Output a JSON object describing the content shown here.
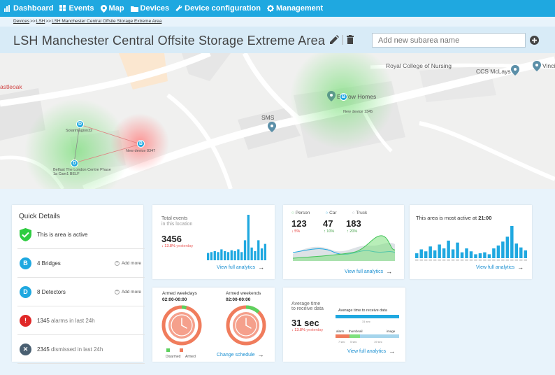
{
  "nav": {
    "items": [
      {
        "label": "Dashboard",
        "icon": "bar-chart-icon"
      },
      {
        "label": "Events",
        "icon": "grid-icon"
      },
      {
        "label": "Map",
        "icon": "map-pin-icon"
      },
      {
        "label": "Devices",
        "icon": "folder-icon"
      },
      {
        "label": "Device configuration",
        "icon": "wrench-icon"
      },
      {
        "label": "Management",
        "icon": "gear-icon"
      }
    ]
  },
  "breadcrumb": {
    "first": "Devices",
    "sep1": ">>",
    "second": "LSH",
    "sep2": ">>",
    "current": "LSH Manchester Central Offsite Storage Extreme Area"
  },
  "header": {
    "title": "LSH Manchester Central Offsite Storage Extreme Area",
    "subarea_placeholder": "Add new subarea name"
  },
  "map": {
    "labels": {
      "castleoak": "astleoak",
      "royal_college": "Royal College of Nursing",
      "ccs": "CCS McLays",
      "vinci": "Vinci",
      "sms": "SMS",
      "barrow": "Barrow Homes",
      "new_device_1": "New device 1345",
      "device_a": "Solarimagion32",
      "device_b": "New device 8347",
      "device_c": "Belfast The London Centre Phase 1a Cam1 BELF"
    },
    "marker_letters": {
      "bridge": "B",
      "detector": "D"
    }
  },
  "quick_details": {
    "title": "Quick Details",
    "active": "This is area is active",
    "bridges": "4 Bridges",
    "detectors": "8 Detectors",
    "alarms_count": "1345",
    "alarms_text": "alarms in last 24h",
    "dismissed_count": "2345",
    "dismissed_text": "dismissed in last 24h",
    "add_more": "Add more",
    "bridge_letter": "B",
    "detector_letter": "D",
    "alarm_glyph": "!",
    "dismiss_glyph": "✕",
    "colors": {
      "active": "#2ecc40",
      "bridge": "#1fa8e0",
      "alarm": "#e02828",
      "dismissed": "#4a6072"
    }
  },
  "total_events": {
    "label_line1": "Total events",
    "label_line2": "in this location",
    "value": "3456",
    "change": "↓ 13.8%",
    "change_suffix": "yesterday",
    "link": "View full analytics",
    "bars": [
      8,
      9,
      10,
      9,
      12,
      10,
      9,
      11,
      10,
      12,
      9,
      22,
      50,
      14,
      10,
      22,
      13,
      18
    ]
  },
  "detections": {
    "person_label": "Person",
    "car_label": "Car",
    "truck_label": "Truck",
    "person_value": "123",
    "car_value": "47",
    "truck_value": "183",
    "person_change": "↓ 5%",
    "car_change": "↑ 10%",
    "truck_change": "↑ 20%",
    "link": "View full analytics",
    "colors": {
      "person": "#43c35a",
      "car": "#1fa8e0",
      "truck": "#9aa5ad"
    }
  },
  "most_active": {
    "label": "This area is most active at",
    "time": "21:00",
    "link": "View full analytics",
    "bars": [
      5,
      9,
      7,
      12,
      8,
      14,
      10,
      18,
      9,
      16,
      6,
      10,
      7,
      4,
      5,
      6,
      4,
      10,
      13,
      17,
      22,
      33,
      15,
      11,
      8
    ]
  },
  "armed": {
    "weekdays_label": "Armed weekdays",
    "weekdays_time": "02:00-00:00",
    "weekends_label": "Armed weekends",
    "weekends_time": "02:00-00:00",
    "weekdays_disarmed_fraction": 0.04,
    "weekends_disarmed_fraction": 0.12,
    "legend_disarmed": "Disarmed",
    "legend_armed": "Armed",
    "link": "Change schedule",
    "colors": {
      "armed": "#f07c5c",
      "disarmed": "#5ed15e"
    }
  },
  "receive_time": {
    "label_line1": "Average time",
    "label_line2": "to receive data",
    "value": "31 sec",
    "change": "↓ 13.8%",
    "change_suffix": "yesterday",
    "chart_title": "Average time to receive data",
    "total_caption": "31 sec",
    "seg_alarm": "alarm",
    "seg_thumbnail": "thumbnail",
    "seg_image": "image",
    "seg_alarm_time": "7 sec",
    "seg_thumbnail_time": "5 sec",
    "seg_image_time": "19 sec",
    "link": "View full analytics"
  }
}
